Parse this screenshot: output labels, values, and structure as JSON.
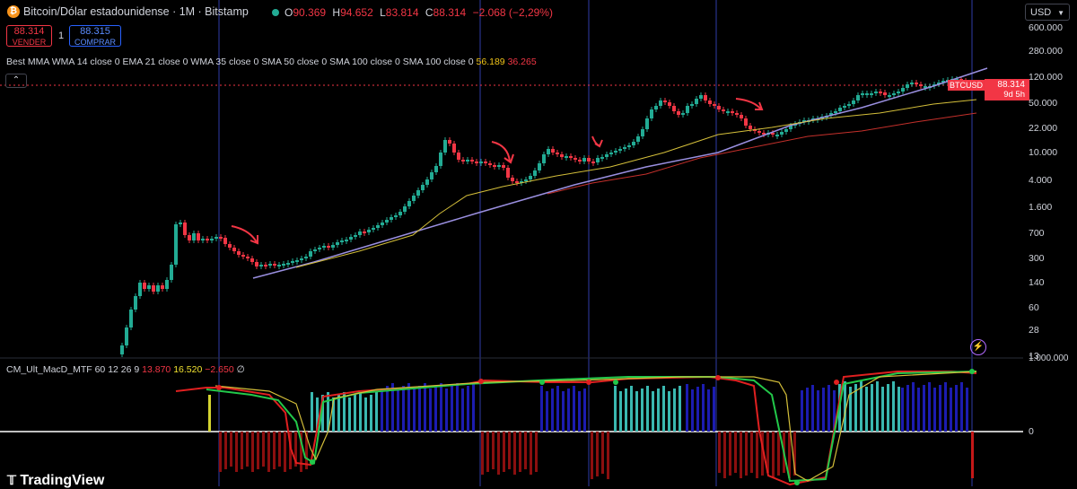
{
  "header": {
    "symbol_title": "Bitcoin/Dólar estadounidense · 1M · Bitstamp",
    "coin_glyph": "₿",
    "ohlc": [
      {
        "k": "O",
        "v": "90.369"
      },
      {
        "k": "H",
        "v": "94.652"
      },
      {
        "k": "L",
        "v": "83.814"
      },
      {
        "k": "C",
        "v": "88.314"
      }
    ],
    "change": "−2.068 (−2,29%)",
    "colors": {
      "up": "#22ab94",
      "down": "#f23645"
    }
  },
  "trade": {
    "sell_price": "88.314",
    "sell_label": "VENDER",
    "qty": "1",
    "buy_price": "88.315",
    "buy_label": "COMPRAR"
  },
  "indicator": {
    "label": "Best MMA WMA 14 close 0 EMA 21 close 0 WMA 35 close 0 SMA 50 close 0 SMA 100 close 0 SMA 100 close 0",
    "val1": "56.189",
    "val2": "36.265"
  },
  "collapse_glyph": "⌃",
  "currency": "USD",
  "price_axis": [
    "600.000",
    "280.000",
    "120.000",
    "50.000",
    "22.000",
    "10.000",
    "4.000",
    "1.600",
    "700",
    "300",
    "140",
    "60",
    "28",
    "13",
    "1.000.000"
  ],
  "last_price": {
    "symbol": "BTCUSD",
    "price": "88.314",
    "countdown": "9d 5h"
  },
  "macd": {
    "title": "CM_Ult_MacD_MTF 60 12 26 9",
    "v1": "13.870",
    "v2": "16.520",
    "v3": "−2.650",
    "v4": "∅",
    "zero_label": "0"
  },
  "brand": "TradingView",
  "bolt_glyph": "⚡"
}
